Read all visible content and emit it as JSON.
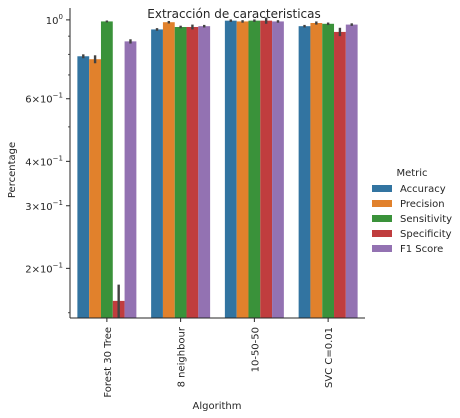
{
  "chart_data": {
    "type": "bar",
    "title": "Extracción de caracteristicas",
    "xlabel": "Algorithm",
    "ylabel": "Percentage",
    "yscale": "log",
    "ylim": [
      0.145,
      1.08
    ],
    "categories": [
      "Forest 30 Tree",
      "8 neighbour",
      "10-50-50",
      "SVC C=0.01"
    ],
    "yticks": [
      {
        "value": 1.0,
        "base": "10",
        "exp": "0"
      },
      {
        "value": 0.6,
        "base": "6×10",
        "exp": "−1"
      },
      {
        "value": 0.4,
        "base": "4×10",
        "exp": "−1"
      },
      {
        "value": 0.3,
        "base": "3×10",
        "exp": "−1"
      },
      {
        "value": 0.2,
        "base": "2×10",
        "exp": "−1"
      }
    ],
    "series": [
      {
        "name": "Accuracy",
        "color": "#3274a1",
        "values": [
          0.79,
          0.94,
          0.995,
          0.96
        ],
        "err": [
          0.01,
          0.008,
          0.008,
          0.008
        ]
      },
      {
        "name": "Precision",
        "color": "#e1812c",
        "values": [
          0.775,
          0.985,
          0.99,
          0.98
        ],
        "err": [
          0.02,
          0.008,
          0.008,
          0.01
        ]
      },
      {
        "name": "Sensitivity",
        "color": "#3a923a",
        "values": [
          0.99,
          0.955,
          0.995,
          0.975
        ],
        "err": [
          0.006,
          0.008,
          0.008,
          0.008
        ]
      },
      {
        "name": "Specificity",
        "color": "#c03d3e",
        "values": [
          0.162,
          0.955,
          0.995,
          0.925
        ],
        "err": [
          0.018,
          0.015,
          0.02,
          0.025
        ]
      },
      {
        "name": "F1 Score",
        "color": "#9372b2",
        "values": [
          0.87,
          0.96,
          0.99,
          0.97
        ],
        "err": [
          0.012,
          0.008,
          0.008,
          0.008
        ]
      }
    ],
    "legend": {
      "title": "Metric",
      "position": "right"
    },
    "grid": false
  }
}
